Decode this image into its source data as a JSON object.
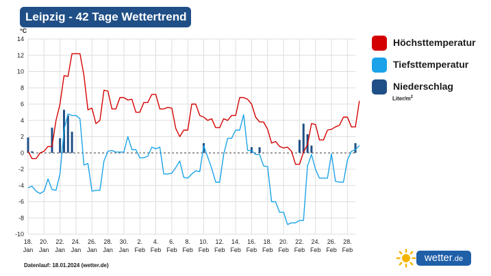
{
  "header": {
    "title": "Leipzig - 42 Tage Wettertrend"
  },
  "legend": {
    "items": [
      {
        "label": "Höchsttemperatur",
        "color": "#d40000"
      },
      {
        "label": "Tiefsttemperatur",
        "color": "#1aa3e8"
      },
      {
        "label": "Niederschlag",
        "color": "#1f4f86"
      }
    ],
    "precip_unit": "Liter/m",
    "precip_unit_sup": "2"
  },
  "footer": {
    "text": "Datenlauf: 18.01.2024 (wetter.de)"
  },
  "brand": {
    "name": "wetter",
    "tld": ".de"
  },
  "chart_data": {
    "type": "line",
    "y_unit_label": "°C",
    "ylim": [
      -10,
      14
    ],
    "yticks": [
      -10,
      -8,
      -6,
      -4,
      -2,
      0,
      2,
      4,
      6,
      8,
      10,
      12,
      14
    ],
    "grid": true,
    "zero_line": "dashed",
    "legend_position": "right",
    "x_start": "18. Jan",
    "x_end": "29. Feb",
    "x_tick_labels": [
      {
        "day": "18.",
        "month": "Jan"
      },
      {
        "day": "20.",
        "month": "Jan"
      },
      {
        "day": "22.",
        "month": "Jan"
      },
      {
        "day": "24.",
        "month": "Jan"
      },
      {
        "day": "26.",
        "month": "Jan"
      },
      {
        "day": "28.",
        "month": "Jan"
      },
      {
        "day": "30.",
        "month": "Jan"
      },
      {
        "day": "2.",
        "month": "Feb"
      },
      {
        "day": "4.",
        "month": "Feb"
      },
      {
        "day": "6.",
        "month": "Feb"
      },
      {
        "day": "8.",
        "month": "Feb"
      },
      {
        "day": "10.",
        "month": "Feb"
      },
      {
        "day": "12.",
        "month": "Feb"
      },
      {
        "day": "14.",
        "month": "Feb"
      },
      {
        "day": "16.",
        "month": "Feb"
      },
      {
        "day": "18.",
        "month": "Feb"
      },
      {
        "day": "20.",
        "month": "Feb"
      },
      {
        "day": "22.",
        "month": "Feb"
      },
      {
        "day": "24.",
        "month": "Feb"
      },
      {
        "day": "26.",
        "month": "Feb"
      },
      {
        "day": "28.",
        "month": "Feb"
      }
    ],
    "series": [
      {
        "name": "Höchsttemperatur",
        "color": "#d40000",
        "kind": "line",
        "values": [
          [
            "18.01.",
            0.2
          ],
          [
            "18.01.",
            -0.7
          ],
          [
            "19.01.",
            -0.7
          ],
          [
            "19.01.",
            0.0
          ],
          [
            "20.01.",
            0.2
          ],
          [
            "20.01.",
            0.8
          ],
          [
            "21.01.",
            0.8
          ],
          [
            "21.01.",
            4.0
          ],
          [
            "22.01.",
            6.0
          ],
          [
            "22.01.",
            9.5
          ],
          [
            "23.01.",
            9.4
          ],
          [
            "23.01.",
            12.2
          ],
          [
            "24.01.",
            12.2
          ],
          [
            "24.01.",
            12.2
          ],
          [
            "25.01.",
            9.5
          ],
          [
            "25.01.",
            5.3
          ],
          [
            "26.01.",
            5.5
          ],
          [
            "26.01.",
            3.6
          ],
          [
            "27.01.",
            4.0
          ],
          [
            "27.01.",
            7.7
          ],
          [
            "28.01.",
            7.6
          ],
          [
            "28.01.",
            5.4
          ],
          [
            "29.01.",
            5.4
          ],
          [
            "29.01.",
            6.8
          ],
          [
            "30.01.",
            6.8
          ],
          [
            "30.01.",
            6.5
          ],
          [
            "31.01.",
            6.6
          ],
          [
            "31.01.",
            5.0
          ],
          [
            "01.02.",
            5.0
          ],
          [
            "01.02.",
            6.2
          ],
          [
            "02.02.",
            6.2
          ],
          [
            "02.02.",
            7.2
          ],
          [
            "03.02.",
            7.2
          ],
          [
            "03.02.",
            5.4
          ],
          [
            "04.02.",
            5.4
          ],
          [
            "04.02.",
            5.6
          ],
          [
            "05.02.",
            5.5
          ],
          [
            "05.02.",
            3.0
          ],
          [
            "06.02.",
            2.0
          ],
          [
            "06.02.",
            2.8
          ],
          [
            "07.02.",
            2.8
          ],
          [
            "07.02.",
            6.0
          ],
          [
            "08.02.",
            6.0
          ],
          [
            "08.02.",
            4.6
          ],
          [
            "09.02.",
            4.4
          ],
          [
            "09.02.",
            4.0
          ],
          [
            "10.02.",
            4.2
          ],
          [
            "10.02.",
            3.1
          ],
          [
            "11.02.",
            3.1
          ],
          [
            "11.02.",
            4.2
          ],
          [
            "12.02.",
            4.0
          ],
          [
            "12.02.",
            4.6
          ],
          [
            "13.02.",
            4.6
          ],
          [
            "13.02.",
            6.8
          ],
          [
            "14.02.",
            6.8
          ],
          [
            "14.02.",
            6.6
          ],
          [
            "15.02.",
            6.0
          ],
          [
            "15.02.",
            4.4
          ],
          [
            "16.02.",
            3.8
          ],
          [
            "16.02.",
            3.8
          ],
          [
            "17.02.",
            2.9
          ],
          [
            "17.02.",
            1.2
          ],
          [
            "18.02.",
            1.4
          ],
          [
            "18.02.",
            0.8
          ],
          [
            "19.02.",
            0.6
          ],
          [
            "19.02.",
            0.7
          ],
          [
            "20.02.",
            0.2
          ],
          [
            "20.02.",
            -1.4
          ],
          [
            "21.02.",
            -1.4
          ],
          [
            "21.02.",
            0.1
          ],
          [
            "22.02.",
            1.0
          ],
          [
            "22.02.",
            3.6
          ],
          [
            "23.02.",
            3.5
          ],
          [
            "23.02.",
            1.6
          ],
          [
            "24.02.",
            1.6
          ],
          [
            "24.02.",
            2.8
          ],
          [
            "25.02.",
            2.9
          ],
          [
            "25.02.",
            3.2
          ],
          [
            "26.02.",
            3.4
          ],
          [
            "26.02.",
            4.4
          ],
          [
            "27.02.",
            4.4
          ],
          [
            "27.02.",
            3.2
          ],
          [
            "28.02.",
            3.2
          ],
          [
            "28.02.",
            6.4
          ]
        ]
      },
      {
        "name": "Tiefsttemperatur",
        "color": "#1aa3e8",
        "kind": "line",
        "values": [
          [
            "18.01.",
            -4.3
          ],
          [
            "18.01.",
            -4.1
          ],
          [
            "19.01.",
            -4.7
          ],
          [
            "19.01.",
            -5.0
          ],
          [
            "20.01.",
            -4.7
          ],
          [
            "20.01.",
            -3.2
          ],
          [
            "21.01.",
            -4.5
          ],
          [
            "21.01.",
            -4.6
          ],
          [
            "22.01.",
            -2.6
          ],
          [
            "22.01.",
            2.8
          ],
          [
            "23.01.",
            4.8
          ],
          [
            "23.01.",
            4.6
          ],
          [
            "24.01.",
            4.6
          ],
          [
            "24.01.",
            4.2
          ],
          [
            "25.01.",
            -1.5
          ],
          [
            "25.01.",
            -1.3
          ],
          [
            "26.01.",
            -4.7
          ],
          [
            "26.01.",
            -4.6
          ],
          [
            "27.01.",
            -4.6
          ],
          [
            "27.01.",
            -1.0
          ],
          [
            "28.01.",
            0.2
          ],
          [
            "28.01.",
            0.3
          ],
          [
            "29.01.",
            0.1
          ],
          [
            "29.01.",
            0.1
          ],
          [
            "30.01.",
            0.1
          ],
          [
            "30.01.",
            2.0
          ],
          [
            "31.01.",
            0.4
          ],
          [
            "31.01.",
            0.4
          ],
          [
            "01.02.",
            -0.6
          ],
          [
            "01.02.",
            -0.6
          ],
          [
            "02.02.",
            -0.4
          ],
          [
            "02.02.",
            0.7
          ],
          [
            "03.02.",
            0.5
          ],
          [
            "03.02.",
            0.7
          ],
          [
            "04.02.",
            -2.6
          ],
          [
            "04.02.",
            -2.6
          ],
          [
            "05.02.",
            -2.5
          ],
          [
            "05.02.",
            -1.8
          ],
          [
            "06.02.",
            -1.0
          ],
          [
            "06.02.",
            -3.0
          ],
          [
            "07.02.",
            -3.1
          ],
          [
            "07.02.",
            -2.6
          ],
          [
            "08.02.",
            -2.2
          ],
          [
            "08.02.",
            -2.3
          ],
          [
            "09.02.",
            0.9
          ],
          [
            "09.02.",
            -0.5
          ],
          [
            "10.02.",
            -1.9
          ],
          [
            "10.02.",
            -3.6
          ],
          [
            "11.02.",
            -3.6
          ],
          [
            "11.02.",
            -0.2
          ],
          [
            "12.02.",
            1.8
          ],
          [
            "12.02.",
            1.8
          ],
          [
            "13.02.",
            2.8
          ],
          [
            "13.02.",
            2.8
          ],
          [
            "14.02.",
            4.7
          ],
          [
            "14.02.",
            0.3
          ],
          [
            "15.02.",
            0.3
          ],
          [
            "15.02.",
            -0.2
          ],
          [
            "16.02.",
            -0.2
          ],
          [
            "16.02.",
            -1.6
          ],
          [
            "17.02.",
            -1.7
          ],
          [
            "17.02.",
            -6.0
          ],
          [
            "18.02.",
            -6.0
          ],
          [
            "18.02.",
            -7.3
          ],
          [
            "19.02.",
            -7.3
          ],
          [
            "19.02.",
            -8.8
          ],
          [
            "20.02.",
            -8.6
          ],
          [
            "20.02.",
            -8.6
          ],
          [
            "21.02.",
            -8.3
          ],
          [
            "21.02.",
            -8.3
          ],
          [
            "22.02.",
            -1.6
          ],
          [
            "22.02.",
            -0.2
          ],
          [
            "23.02.",
            -2.0
          ],
          [
            "23.02.",
            -3.1
          ],
          [
            "24.02.",
            -3.1
          ],
          [
            "24.02.",
            -3.1
          ],
          [
            "25.02.",
            -0.1
          ],
          [
            "25.02.",
            -3.5
          ],
          [
            "26.02.",
            -3.6
          ],
          [
            "26.02.",
            -3.6
          ],
          [
            "27.02.",
            -0.9
          ],
          [
            "27.02.",
            0.2
          ],
          [
            "28.02.",
            0.4
          ],
          [
            "28.02.",
            0.9
          ]
        ]
      },
      {
        "name": "Niederschlag",
        "color": "#1f4f86",
        "kind": "bar",
        "unit": "Liter/m²",
        "values": [
          [
            "18.01.",
            1.9
          ],
          [
            "18.01.",
            0.2
          ],
          [
            "21.01.",
            3.1
          ],
          [
            "22.01.",
            1.8
          ],
          [
            "22.01.",
            5.3
          ],
          [
            "23.01.",
            4.6
          ],
          [
            "23.01.",
            2.6
          ],
          [
            "09.02.",
            1.2
          ],
          [
            "15.02.",
            0.7
          ],
          [
            "16.02.",
            0.7
          ],
          [
            "21.02.",
            1.6
          ],
          [
            "21.02.",
            3.6
          ],
          [
            "22.02.",
            2.3
          ],
          [
            "22.02.",
            0.9
          ],
          [
            "28.02.",
            1.2
          ]
        ]
      }
    ]
  }
}
